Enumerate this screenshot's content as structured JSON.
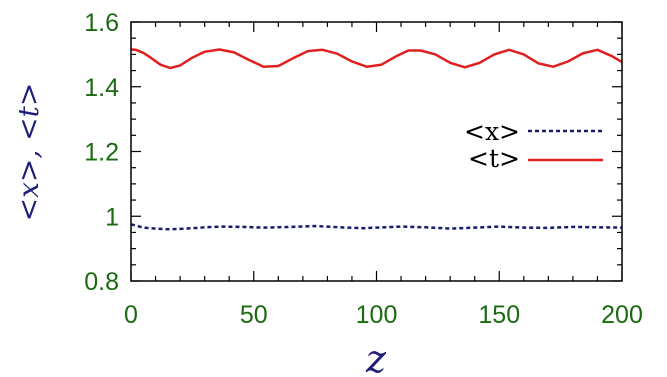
{
  "chart_data": {
    "type": "line",
    "xlabel": "z",
    "ylabel": "<x>, <t>",
    "xlim": [
      0,
      200
    ],
    "ylim": [
      0.8,
      1.6
    ],
    "x_ticks": [
      "0",
      "50",
      "100",
      "150",
      "200"
    ],
    "y_ticks": [
      "0.8",
      "1",
      "1.2",
      "1.4",
      "1.6"
    ],
    "grid": false,
    "legend_position": "right",
    "colors": {
      "tick_labels": "#1a6b10",
      "axis_titles": "#1f1f7a",
      "x_series": "#1a1a6e",
      "t_series": "#e02020",
      "frame": "#000000"
    },
    "series": [
      {
        "name": "<x>",
        "style": "dashed",
        "x": [
          0,
          5,
          10,
          15,
          20,
          25,
          30,
          37,
          45,
          55,
          65,
          75,
          85,
          95,
          100,
          110,
          120,
          130,
          140,
          150,
          160,
          170,
          180,
          190,
          200
        ],
        "y": [
          0.975,
          0.965,
          0.962,
          0.96,
          0.961,
          0.963,
          0.966,
          0.968,
          0.967,
          0.965,
          0.967,
          0.97,
          0.966,
          0.963,
          0.965,
          0.968,
          0.966,
          0.962,
          0.965,
          0.968,
          0.965,
          0.964,
          0.967,
          0.966,
          0.965
        ]
      },
      {
        "name": "<t>",
        "style": "solid",
        "x": [
          0,
          2,
          5,
          8,
          12,
          16,
          20,
          25,
          30,
          36,
          42,
          48,
          54,
          60,
          66,
          72,
          78,
          84,
          90,
          96,
          102,
          108,
          113,
          118,
          124,
          130,
          136,
          142,
          148,
          154,
          160,
          166,
          172,
          178,
          184,
          190,
          196,
          200
        ],
        "y": [
          1.515,
          1.514,
          1.505,
          1.49,
          1.468,
          1.458,
          1.466,
          1.49,
          1.508,
          1.515,
          1.506,
          1.483,
          1.462,
          1.464,
          1.488,
          1.51,
          1.514,
          1.502,
          1.478,
          1.462,
          1.468,
          1.494,
          1.512,
          1.512,
          1.5,
          1.474,
          1.46,
          1.474,
          1.5,
          1.514,
          1.5,
          1.472,
          1.462,
          1.478,
          1.503,
          1.514,
          1.494,
          1.476
        ]
      }
    ]
  }
}
